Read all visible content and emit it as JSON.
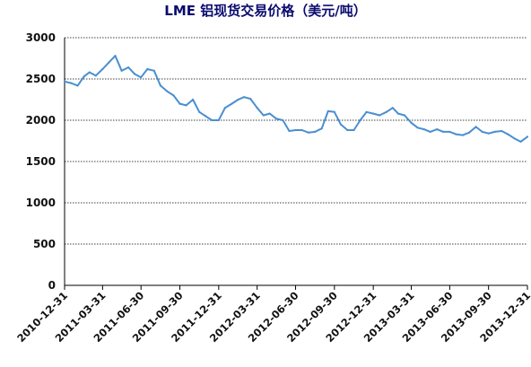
{
  "chart_data": {
    "type": "line",
    "title": "LME 铝现货交易价格（美元/吨）",
    "xlabel": "",
    "ylabel": "",
    "ylim": [
      0,
      3000
    ],
    "y_ticks": [
      "0",
      "500",
      "1000",
      "1500",
      "2000",
      "2500",
      "3000"
    ],
    "x_ticks": [
      "2010-12-31",
      "2011-03-31",
      "2011-06-30",
      "2011-09-30",
      "2011-12-31",
      "2012-03-31",
      "2012-06-30",
      "2012-09-30",
      "2012-12-31",
      "2013-03-31",
      "2013-06-30",
      "2013-09-30",
      "2013-12-31"
    ],
    "grid": "horizontal-dashed",
    "legend": "none",
    "line_color": "#4a8fd0",
    "x": [
      "2010-12-31",
      "2011-01-15",
      "2011-01-31",
      "2011-02-15",
      "2011-02-28",
      "2011-03-15",
      "2011-03-31",
      "2011-04-15",
      "2011-04-30",
      "2011-05-15",
      "2011-05-31",
      "2011-06-15",
      "2011-06-30",
      "2011-07-15",
      "2011-07-31",
      "2011-08-15",
      "2011-08-31",
      "2011-09-15",
      "2011-09-30",
      "2011-10-15",
      "2011-10-31",
      "2011-11-15",
      "2011-11-30",
      "2011-12-15",
      "2011-12-31",
      "2012-01-15",
      "2012-01-31",
      "2012-02-15",
      "2012-02-29",
      "2012-03-15",
      "2012-03-31",
      "2012-04-15",
      "2012-04-30",
      "2012-05-15",
      "2012-05-31",
      "2012-06-15",
      "2012-06-30",
      "2012-07-15",
      "2012-07-31",
      "2012-08-15",
      "2012-08-31",
      "2012-09-15",
      "2012-09-30",
      "2012-10-15",
      "2012-10-31",
      "2012-11-15",
      "2012-11-30",
      "2012-12-15",
      "2012-12-31",
      "2013-01-15",
      "2013-01-31",
      "2013-02-15",
      "2013-02-28",
      "2013-03-15",
      "2013-03-31",
      "2013-04-15",
      "2013-04-30",
      "2013-05-15",
      "2013-05-31",
      "2013-06-15",
      "2013-06-30",
      "2013-07-15",
      "2013-07-31",
      "2013-08-15",
      "2013-08-31",
      "2013-09-15",
      "2013-09-30",
      "2013-10-15",
      "2013-10-31",
      "2013-11-15",
      "2013-11-30",
      "2013-12-15",
      "2013-12-31"
    ],
    "values": [
      2470,
      2450,
      2420,
      2530,
      2580,
      2540,
      2620,
      2700,
      2780,
      2600,
      2640,
      2560,
      2520,
      2620,
      2600,
      2420,
      2350,
      2300,
      2200,
      2180,
      2250,
      2100,
      2050,
      2000,
      2000,
      2150,
      2200,
      2250,
      2280,
      2260,
      2150,
      2060,
      2080,
      2020,
      2000,
      1870,
      1880,
      1880,
      1850,
      1860,
      1900,
      2110,
      2100,
      1950,
      1880,
      1880,
      2000,
      2100,
      2080,
      2060,
      2100,
      2150,
      2080,
      2060,
      1970,
      1910,
      1890,
      1860,
      1890,
      1860,
      1860,
      1830,
      1820,
      1850,
      1920,
      1860,
      1840,
      1860,
      1870,
      1830,
      1780,
      1740,
      1800
    ]
  }
}
